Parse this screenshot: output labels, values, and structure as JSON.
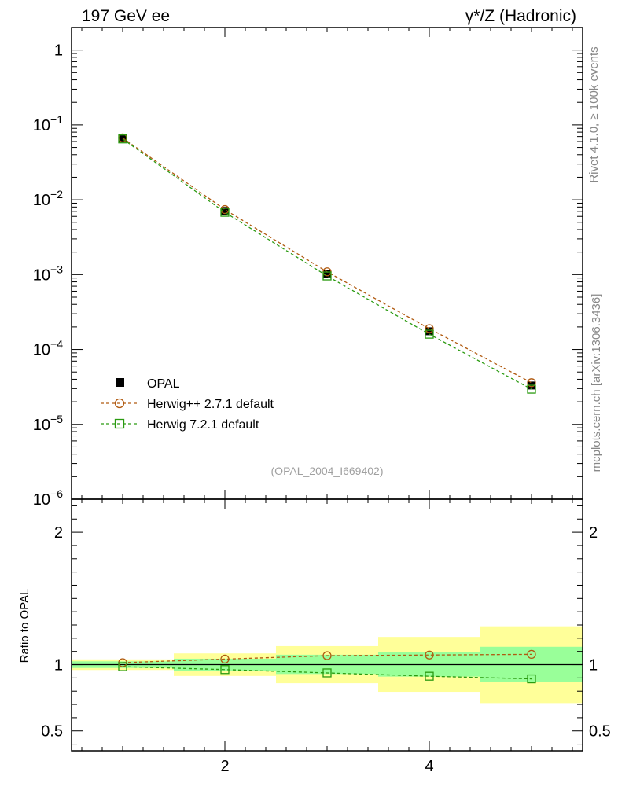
{
  "header": {
    "left_title": "197 GeV ee",
    "right_title": "γ*/Z (Hadronic)"
  },
  "side_labels": {
    "rivet": "Rivet 4.1.0, ≥ 100k events",
    "mcplots": "mcplots.cern.ch [arXiv:1306.3436]"
  },
  "watermark": "(OPAL_2004_I669402)",
  "legend": {
    "opal": "OPAL",
    "herwigpp": "Herwig++ 2.7.1 default",
    "herwig7": "Herwig 7.2.1 default"
  },
  "colors": {
    "data": "#000000",
    "herwigpp": "#b05a10",
    "herwig7": "#2a9a10",
    "band_inner": "#99ff99",
    "band_outer": "#ffff99"
  },
  "chart_data": {
    "type": "scatter",
    "x_range": [
      0.5,
      5.5
    ],
    "x_ticks": [
      {
        "v": 2,
        "label": "2"
      },
      {
        "v": 4,
        "label": "4"
      }
    ],
    "main": {
      "yscale": "log",
      "ylim": [
        1e-06,
        2
      ],
      "y_tick_labels": [
        {
          "v": 1,
          "base": "1",
          "exp": ""
        },
        {
          "v": 0.1,
          "base": "10",
          "exp": "−1"
        },
        {
          "v": 0.01,
          "base": "10",
          "exp": "−2"
        },
        {
          "v": 0.001,
          "base": "10",
          "exp": "−3"
        },
        {
          "v": 0.0001,
          "base": "10",
          "exp": "−4"
        },
        {
          "v": 1e-05,
          "base": "10",
          "exp": "−5"
        },
        {
          "v": 1e-06,
          "base": "10",
          "exp": "−6"
        }
      ],
      "series": [
        {
          "name": "OPAL",
          "key": "opal",
          "x": [
            1,
            2,
            3,
            4,
            5
          ],
          "values": [
            0.066,
            0.0071,
            0.00102,
            0.000175,
            3.3e-05
          ]
        },
        {
          "name": "Herwig++ 2.7.1 default",
          "key": "herwigpp",
          "x": [
            1,
            2,
            3,
            4,
            5
          ],
          "values": [
            0.067,
            0.0074,
            0.00109,
            0.00019,
            3.6e-05
          ]
        },
        {
          "name": "Herwig 7.2.1 default",
          "key": "herwig7",
          "x": [
            1,
            2,
            3,
            4,
            5
          ],
          "values": [
            0.065,
            0.0068,
            0.00096,
            0.00016,
            2.95e-05
          ]
        }
      ]
    },
    "ratio": {
      "ylabel": "Ratio to OPAL",
      "ylim": [
        0.35,
        2.25
      ],
      "y_tick_labels": [
        {
          "v": 0.5,
          "label": "0.5"
        },
        {
          "v": 1,
          "label": "1"
        },
        {
          "v": 2,
          "label": "2"
        }
      ],
      "bins": [
        [
          0.5,
          1.5
        ],
        [
          1.5,
          2.5
        ],
        [
          2.5,
          3.5
        ],
        [
          3.5,
          4.5
        ],
        [
          4.5,
          5.5
        ]
      ],
      "band_inner": [
        [
          0.975,
          1.025
        ],
        [
          0.955,
          1.045
        ],
        [
          0.93,
          1.075
        ],
        [
          0.91,
          1.095
        ],
        [
          0.87,
          1.135
        ]
      ],
      "band_outer": [
        [
          0.96,
          1.04
        ],
        [
          0.915,
          1.085
        ],
        [
          0.86,
          1.14
        ],
        [
          0.795,
          1.21
        ],
        [
          0.71,
          1.29
        ]
      ],
      "series": [
        {
          "key": "herwigpp",
          "x": [
            1,
            2,
            3,
            4,
            5
          ],
          "values": [
            1.015,
            1.042,
            1.068,
            1.073,
            1.078
          ]
        },
        {
          "key": "herwig7",
          "x": [
            1,
            2,
            3,
            4,
            5
          ],
          "values": [
            0.985,
            0.963,
            0.938,
            0.913,
            0.893
          ]
        }
      ]
    }
  }
}
